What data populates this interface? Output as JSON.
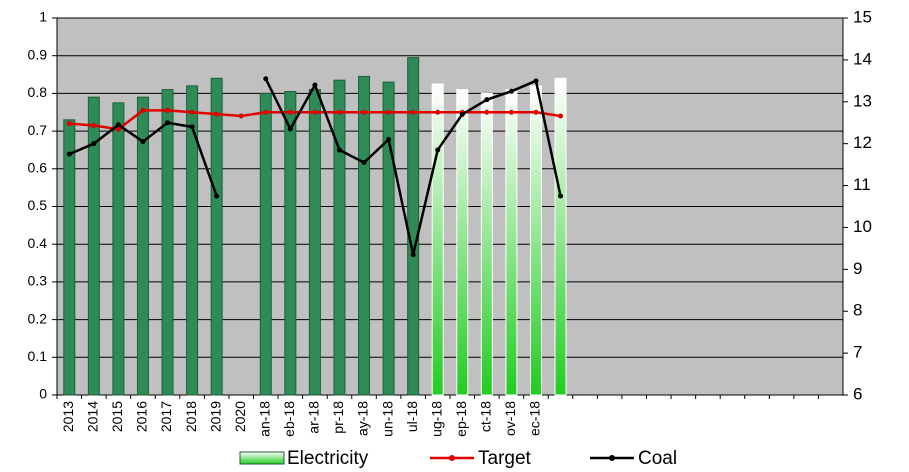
{
  "chart_data": {
    "type": "combo",
    "categories": [
      "2013",
      "2014",
      "2015",
      "2016",
      "2017",
      "2018",
      "2019",
      "2020",
      "an-18",
      "eb-18",
      "ar-18",
      "pr-18",
      "ay-18",
      "un-18",
      "ul-18",
      "ug-18",
      "ep-18",
      "ct-18",
      "ov-18",
      "ec-18",
      null,
      null,
      null,
      null,
      null,
      null,
      null,
      null,
      null,
      null,
      null,
      null
    ],
    "series": [
      {
        "name": "Electricity",
        "kind": "bar",
        "color": "#2e8b57",
        "gradient_color": "#22cc22",
        "styles": [
          "solid",
          "solid",
          "solid",
          "solid",
          "solid",
          "solid",
          "solid",
          "solid",
          "solid",
          "solid",
          "solid",
          "solid",
          "solid",
          "solid",
          "solid",
          "gradient",
          "gradient",
          "gradient",
          "gradient",
          "gradient",
          "gradient",
          null,
          null,
          null,
          null,
          null,
          null,
          null,
          null,
          null,
          null,
          null
        ],
        "values": [
          0.73,
          0.79,
          0.775,
          0.79,
          0.81,
          0.82,
          0.84,
          null,
          0.8,
          0.805,
          0.81,
          0.835,
          0.845,
          0.83,
          0.895,
          0.825,
          0.81,
          0.8,
          0.81,
          0.82,
          0.84,
          null,
          null,
          null,
          null,
          null,
          null,
          null,
          null,
          null,
          null,
          null
        ]
      },
      {
        "name": "Target",
        "kind": "line",
        "color": "#e00000",
        "values": [
          0.72,
          0.715,
          0.705,
          0.755,
          0.755,
          0.75,
          0.745,
          0.74,
          0.75,
          0.75,
          0.75,
          0.75,
          0.75,
          0.75,
          0.75,
          0.75,
          0.75,
          0.75,
          0.75,
          0.75,
          0.74,
          null,
          null,
          null,
          null,
          null,
          null,
          null,
          null,
          null,
          null,
          null
        ]
      },
      {
        "name": "Coal",
        "kind": "line",
        "axis": "y2",
        "color": "#000000",
        "values": [
          11.75,
          12.0,
          12.45,
          12.05,
          12.5,
          12.4,
          10.75,
          null,
          13.55,
          12.35,
          13.4,
          11.85,
          11.55,
          12.1,
          9.35,
          11.85,
          12.7,
          13.05,
          13.25,
          13.5,
          10.75,
          null,
          null,
          null,
          null,
          null,
          null,
          null,
          null,
          null,
          null,
          null
        ]
      }
    ],
    "ylim": [
      0,
      1
    ],
    "yticks": [
      0,
      0.1,
      0.2,
      0.3,
      0.4,
      0.5,
      0.6,
      0.7,
      0.8,
      0.9,
      1
    ],
    "y2lim": [
      6,
      15
    ],
    "y2ticks": [
      6,
      7,
      8,
      9,
      10,
      11,
      12,
      13,
      14,
      15
    ],
    "grid": true,
    "legend": "bottom",
    "plot_background": "#c0c0c0"
  }
}
